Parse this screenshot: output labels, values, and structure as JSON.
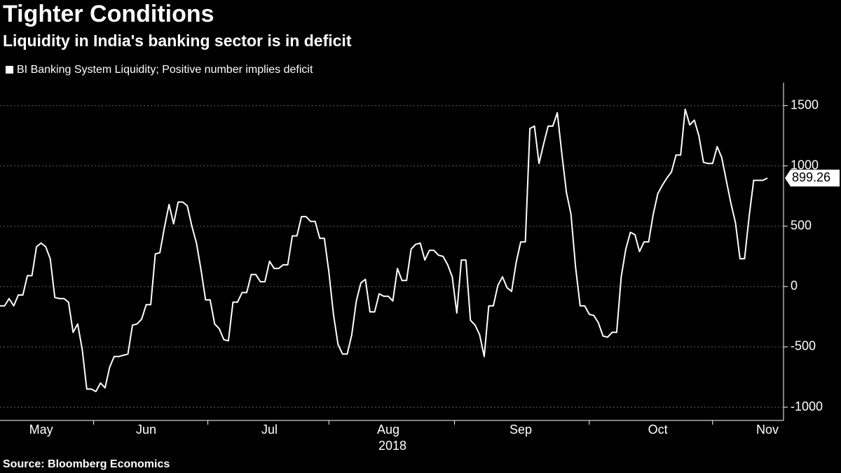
{
  "chart_data": {
    "type": "line",
    "title": "Tighter Conditions",
    "subtitle": "Liquidity in India's banking sector is in deficit",
    "source": "Source: Bloomberg Economics",
    "x_sublabel": "2018",
    "categories": [
      null,
      null,
      null,
      null,
      null,
      null,
      null,
      null,
      null,
      "May",
      null,
      null,
      null,
      null,
      null,
      null,
      null,
      null,
      null,
      null,
      null,
      null,
      null,
      null,
      null,
      null,
      null,
      null,
      null,
      null,
      null,
      null,
      "Jun",
      null,
      null,
      null,
      null,
      null,
      null,
      null,
      null,
      null,
      null,
      null,
      null,
      null,
      null,
      null,
      null,
      null,
      null,
      null,
      null,
      null,
      null,
      null,
      null,
      null,
      null,
      "Jul",
      null,
      null,
      null,
      null,
      null,
      null,
      null,
      null,
      null,
      null,
      null,
      null,
      null,
      null,
      null,
      null,
      null,
      null,
      null,
      null,
      null,
      null,
      null,
      null,
      null,
      "Aug",
      null,
      null,
      null,
      null,
      null,
      null,
      null,
      null,
      null,
      null,
      null,
      null,
      null,
      null,
      null,
      null,
      null,
      null,
      null,
      null,
      null,
      null,
      null,
      null,
      null,
      null,
      null,
      null,
      "Sep",
      null,
      null,
      null,
      null,
      null,
      null,
      null,
      null,
      null,
      null,
      null,
      null,
      null,
      null,
      null,
      null,
      null,
      null,
      null,
      null,
      null,
      null,
      null,
      null,
      null,
      null,
      null,
      null,
      null,
      "Oct",
      null,
      null,
      null,
      null,
      null,
      null,
      null,
      null,
      null,
      null,
      null,
      null,
      null,
      null,
      null,
      null,
      null,
      null,
      null,
      null,
      null,
      null,
      null,
      "Nov"
    ],
    "series": [
      {
        "name": "BI Banking System Liquidity; Positive number implies deficit",
        "color": "#ffffff",
        "values": [
          -160,
          -160,
          -100,
          -160,
          -70,
          -70,
          90,
          90,
          330,
          360,
          330,
          230,
          -90,
          -100,
          -100,
          -130,
          -380,
          -310,
          -520,
          -850,
          -850,
          -870,
          -800,
          -840,
          -670,
          -580,
          -580,
          -570,
          -560,
          -320,
          -310,
          -270,
          -150,
          -150,
          270,
          280,
          490,
          680,
          520,
          700,
          700,
          670,
          500,
          360,
          140,
          -110,
          -110,
          -310,
          -350,
          -440,
          -450,
          -130,
          -130,
          -50,
          -50,
          100,
          100,
          40,
          40,
          210,
          150,
          150,
          180,
          180,
          420,
          420,
          580,
          580,
          540,
          540,
          400,
          400,
          120,
          -230,
          -480,
          -560,
          -560,
          -400,
          -120,
          30,
          60,
          -210,
          -210,
          -60,
          -80,
          -80,
          -120,
          150,
          50,
          50,
          310,
          350,
          360,
          220,
          300,
          300,
          260,
          250,
          180,
          80,
          -220,
          220,
          220,
          -280,
          -320,
          -400,
          -580,
          -160,
          -160,
          10,
          80,
          -10,
          -40,
          200,
          370,
          370,
          1310,
          1330,
          1020,
          1180,
          1330,
          1330,
          1440,
          1100,
          780,
          600,
          160,
          -160,
          -160,
          -230,
          -240,
          -300,
          -410,
          -420,
          -380,
          -380,
          80,
          310,
          450,
          430,
          290,
          370,
          370,
          600,
          770,
          840,
          900,
          950,
          1090,
          1090,
          1470,
          1340,
          1380,
          1250,
          1030,
          1020,
          1020,
          1160,
          1070,
          880,
          690,
          530,
          230,
          230,
          580,
          880,
          880,
          880,
          899.26
        ]
      }
    ],
    "ylim": [
      -1110,
      1690
    ],
    "yticks": [
      -1000,
      -500,
      0,
      500,
      1000,
      1500
    ],
    "grid": true
  }
}
